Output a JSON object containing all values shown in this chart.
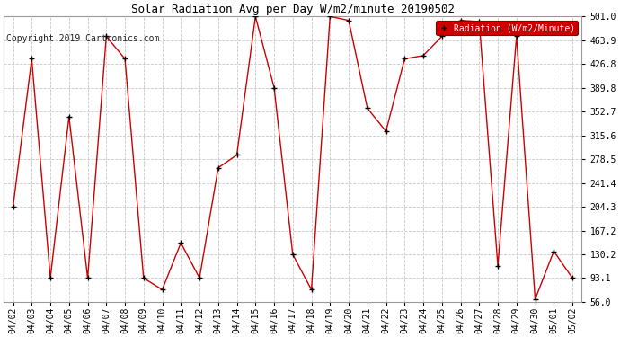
{
  "title": "Solar Radiation Avg per Day W/m2/minute 20190502",
  "copyright": "Copyright 2019 Cartronics.com",
  "legend_label": "Radiation (W/m2/Minute)",
  "background_color": "#ffffff",
  "plot_bg_color": "#ffffff",
  "grid_color": "#c8c8c8",
  "line_color": "#cc0000",
  "marker_color": "#000000",
  "legend_bg": "#cc0000",
  "legend_text_color": "#ffffff",
  "ylim": [
    56.0,
    501.0
  ],
  "yticks": [
    56.0,
    93.1,
    130.2,
    167.2,
    204.3,
    241.4,
    278.5,
    315.6,
    352.7,
    389.8,
    426.8,
    463.9,
    501.0
  ],
  "dates": [
    "04/02",
    "04/03",
    "04/04",
    "04/05",
    "04/06",
    "04/07",
    "04/08",
    "04/09",
    "04/10",
    "04/11",
    "04/12",
    "04/13",
    "04/14",
    "04/15",
    "04/16",
    "04/17",
    "04/18",
    "04/19",
    "04/20",
    "04/21",
    "04/22",
    "04/23",
    "04/24",
    "04/25",
    "04/26",
    "04/27",
    "04/28",
    "04/29",
    "04/30",
    "05/01",
    "05/02"
  ],
  "values": [
    204.3,
    435.0,
    93.1,
    345.0,
    93.1,
    470.0,
    435.0,
    93.1,
    75.0,
    148.0,
    93.1,
    265.0,
    285.0,
    501.0,
    390.0,
    130.0,
    75.0,
    501.0,
    495.0,
    358.0,
    322.0,
    435.0,
    440.0,
    470.0,
    495.0,
    493.0,
    112.0,
    470.0,
    60.0,
    135.0,
    93.1
  ],
  "title_fontsize": 9,
  "tick_fontsize": 7,
  "copyright_fontsize": 7
}
